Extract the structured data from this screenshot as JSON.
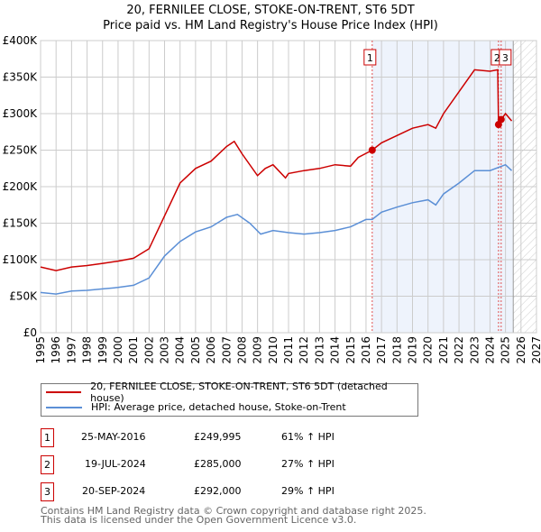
{
  "chart_data": {
    "type": "line",
    "title": "20, FERNILEE CLOSE, STOKE-ON-TRENT, ST6 5DT",
    "subtitle": "Price paid vs. HM Land Registry's House Price Index (HPI)",
    "xlim": [
      1995,
      2027
    ],
    "ylim": [
      0,
      400000
    ],
    "x_ticks": [
      "1995",
      "1996",
      "1997",
      "1998",
      "1999",
      "2000",
      "2001",
      "2002",
      "2003",
      "2004",
      "2005",
      "2006",
      "2007",
      "2008",
      "2009",
      "2010",
      "2011",
      "2012",
      "2013",
      "2014",
      "2015",
      "2016",
      "2017",
      "2018",
      "2019",
      "2020",
      "2021",
      "2022",
      "2023",
      "2024",
      "2025",
      "2026",
      "2027"
    ],
    "y_ticks": [
      {
        "v": 0,
        "label": "£0"
      },
      {
        "v": 50000,
        "label": "£50K"
      },
      {
        "v": 100000,
        "label": "£100K"
      },
      {
        "v": 150000,
        "label": "£150K"
      },
      {
        "v": 200000,
        "label": "£200K"
      },
      {
        "v": 250000,
        "label": "£250K"
      },
      {
        "v": 300000,
        "label": "£300K"
      },
      {
        "v": 350000,
        "label": "£350K"
      },
      {
        "v": 400000,
        "label": "£400K"
      }
    ],
    "grid": true,
    "shaded_from": 2016.4,
    "hatched_from": 2025.5,
    "series": [
      {
        "name": "20, FERNILEE CLOSE, STOKE-ON-TRENT, ST6 5DT (detached house)",
        "color": "#cc0000",
        "x": [
          1995,
          1996,
          1997,
          1998,
          1999,
          2000,
          2001,
          2002,
          2003,
          2004,
          2005,
          2006,
          2007,
          2007.5,
          2008,
          2009,
          2009.5,
          2010,
          2010.8,
          2011,
          2012,
          2013,
          2014,
          2015,
          2015.5,
          2016.4,
          2017,
          2018,
          2019,
          2020,
          2020.5,
          2021,
          2022,
          2023,
          2024,
          2024.5,
          2024.55,
          2024.72,
          2025,
          2025.4
        ],
        "y": [
          90000,
          85000,
          90000,
          92000,
          95000,
          98000,
          102000,
          115000,
          160000,
          205000,
          225000,
          235000,
          255000,
          262000,
          245000,
          215000,
          225000,
          230000,
          212000,
          218000,
          222000,
          225000,
          230000,
          228000,
          240000,
          250000,
          260000,
          270000,
          280000,
          285000,
          280000,
          300000,
          330000,
          360000,
          358000,
          360000,
          285000,
          292000,
          300000,
          290000
        ]
      },
      {
        "name": "HPI: Average price, detached house, Stoke-on-Trent",
        "color": "#5b8fd6",
        "x": [
          1995,
          1996,
          1997,
          1998,
          1999,
          2000,
          2001,
          2002,
          2003,
          2004,
          2005,
          2006,
          2007,
          2007.7,
          2008.5,
          2009.2,
          2010,
          2011,
          2012,
          2013,
          2014,
          2015,
          2016,
          2016.4,
          2017,
          2018,
          2019,
          2020,
          2020.5,
          2021,
          2022,
          2023,
          2024,
          2025,
          2025.4
        ],
        "y": [
          55000,
          53000,
          57000,
          58000,
          60000,
          62000,
          65000,
          75000,
          105000,
          125000,
          138000,
          145000,
          158000,
          162000,
          150000,
          135000,
          140000,
          137000,
          135000,
          137000,
          140000,
          145000,
          155000,
          155000,
          165000,
          172000,
          178000,
          182000,
          175000,
          190000,
          205000,
          222000,
          222000,
          230000,
          222000
        ]
      }
    ],
    "sales": [
      {
        "id": "1",
        "x": 2016.4,
        "price": 249995
      },
      {
        "id": "2",
        "x": 2024.55,
        "price": 285000
      },
      {
        "id": "3",
        "x": 2024.72,
        "price": 292000
      }
    ]
  },
  "table": [
    {
      "id": "1",
      "date": "25-MAY-2016",
      "price": "£249,995",
      "hpi": "61% ↑ HPI"
    },
    {
      "id": "2",
      "date": "19-JUL-2024",
      "price": "£285,000",
      "hpi": "27% ↑ HPI"
    },
    {
      "id": "3",
      "date": "20-SEP-2024",
      "price": "£292,000",
      "hpi": "29% ↑ HPI"
    }
  ],
  "footer": [
    "Contains HM Land Registry data © Crown copyright and database right 2025.",
    "This data is licensed under the Open Government Licence v3.0."
  ]
}
